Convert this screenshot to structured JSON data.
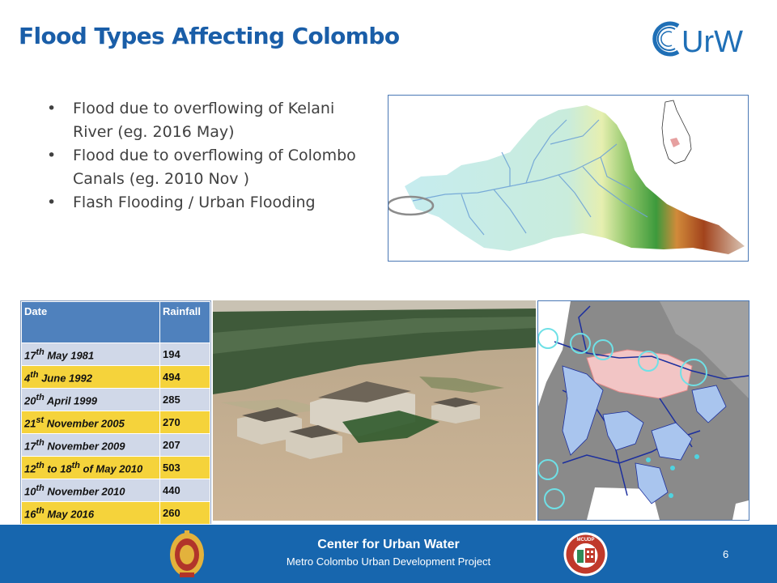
{
  "slide": {
    "title": "Flood Types Affecting Colombo",
    "logo_text": "CUrW",
    "bullets": [
      "Flood due to overflowing of Kelani River (eg. 2016 May)",
      "Flood due to overflowing of Colombo Canals (eg. 2010 Nov )",
      "Flash Flooding / Urban Flooding"
    ],
    "bullet_glyph": "•"
  },
  "rainfall_table": {
    "headers": [
      "Date",
      "Rainfall"
    ],
    "rows": [
      {
        "day": "17",
        "sup": "th",
        "rest": " May 1981",
        "value": "194",
        "highlight": false
      },
      {
        "day": "4",
        "sup": "th",
        "rest": " June 1992",
        "value": "494",
        "highlight": true
      },
      {
        "day": "20",
        "sup": "th",
        "rest": " April 1999",
        "value": "285",
        "highlight": false
      },
      {
        "day": "21",
        "sup": "st",
        "rest": " November 2005",
        "value": "270",
        "highlight": true
      },
      {
        "day": "17",
        "sup": "th",
        "rest": " November 2009",
        "value": "207",
        "highlight": false
      },
      {
        "day": "12",
        "sup": "th",
        "rest": " to 18",
        "sup2": "th",
        "rest2": " of May 2010",
        "value": "503",
        "highlight": true
      },
      {
        "day": "10",
        "sup": "th",
        "rest": " November 2010",
        "value": "440",
        "highlight": false
      },
      {
        "day": "16",
        "sup": "th",
        "rest": " May 2016",
        "value": "260",
        "highlight": true
      }
    ]
  },
  "footer": {
    "title": "Center for Urban Water",
    "subtitle": "Metro Colombo Urban Development Project",
    "page_number": "6",
    "mcudp_label": "MCUDP"
  },
  "colors": {
    "title": "#1a5ea8",
    "footer_bg": "#1766ae",
    "table_header": "#4f81bd",
    "row_light": "#d0d8e8",
    "row_highlight": "#f5d33b"
  },
  "icons": [
    "curw-logo-icon",
    "sri-lanka-emblem-icon",
    "mcudp-logo-icon"
  ]
}
